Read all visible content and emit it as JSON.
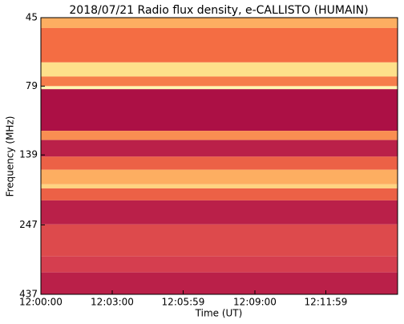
{
  "chart_data": {
    "type": "heatmap",
    "title": "2018/07/21  Radio flux density, e-CALLISTO (HUMAIN)",
    "xlabel": "Time (UT)",
    "ylabel": "Frequency (MHz)",
    "xlim": [
      0,
      900
    ],
    "xticks": [
      {
        "value": 0,
        "label": "12:00:00"
      },
      {
        "value": 180,
        "label": "12:03:00"
      },
      {
        "value": 359,
        "label": "12:05:59"
      },
      {
        "value": 540,
        "label": "12:09:00"
      },
      {
        "value": 719,
        "label": "12:11:59"
      }
    ],
    "ylim": [
      45,
      437
    ],
    "yticks": [
      45,
      79,
      139,
      247,
      437
    ],
    "ylog": true,
    "yinverted": true,
    "y_edges": [
      45,
      49,
      65,
      73,
      79,
      81,
      114,
      123,
      141,
      157,
      177,
      183,
      202,
      246,
      320,
      365,
      437
    ],
    "values": [
      0.6,
      0.4,
      0.8,
      0.45,
      0.95,
      0.05,
      0.5,
      0.1,
      0.35,
      0.6,
      0.75,
      0.35,
      0.1,
      0.25,
      0.2,
      0.1
    ],
    "colormap": [
      "#9e0142",
      "#d53e4f",
      "#f46d43",
      "#fdae61",
      "#fee08b",
      "#ffffbf"
    ]
  }
}
